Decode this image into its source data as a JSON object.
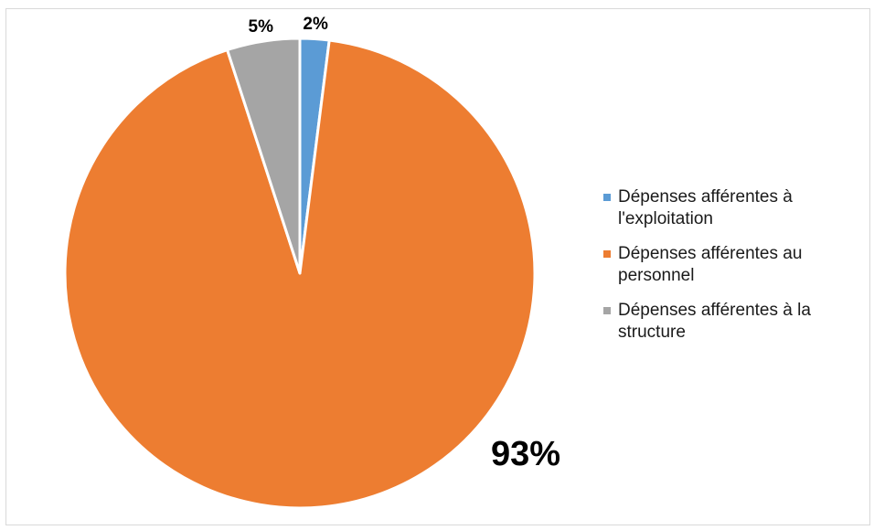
{
  "chart_data": {
    "type": "pie",
    "title": "",
    "slices": [
      {
        "name": "Dépenses afférentes à l'exploitation",
        "value": 2,
        "label": "2%",
        "color": "#5b9bd5"
      },
      {
        "name": "Dépenses afférentes au personnel",
        "value": 93,
        "label": "93%",
        "color": "#ed7d31"
      },
      {
        "name": "Dépenses afférentes à la structure",
        "value": 5,
        "label": "5%",
        "color": "#a5a5a5"
      }
    ],
    "legend_position": "right",
    "start_angle": "top, clockwise"
  },
  "legend": {
    "items": [
      {
        "label": "Dépenses afférentes à l'exploitation",
        "color": "#5b9bd5"
      },
      {
        "label": "Dépenses afférentes au personnel",
        "color": "#ed7d31"
      },
      {
        "label": "Dépenses afférentes à la structure",
        "color": "#a5a5a5"
      }
    ]
  }
}
